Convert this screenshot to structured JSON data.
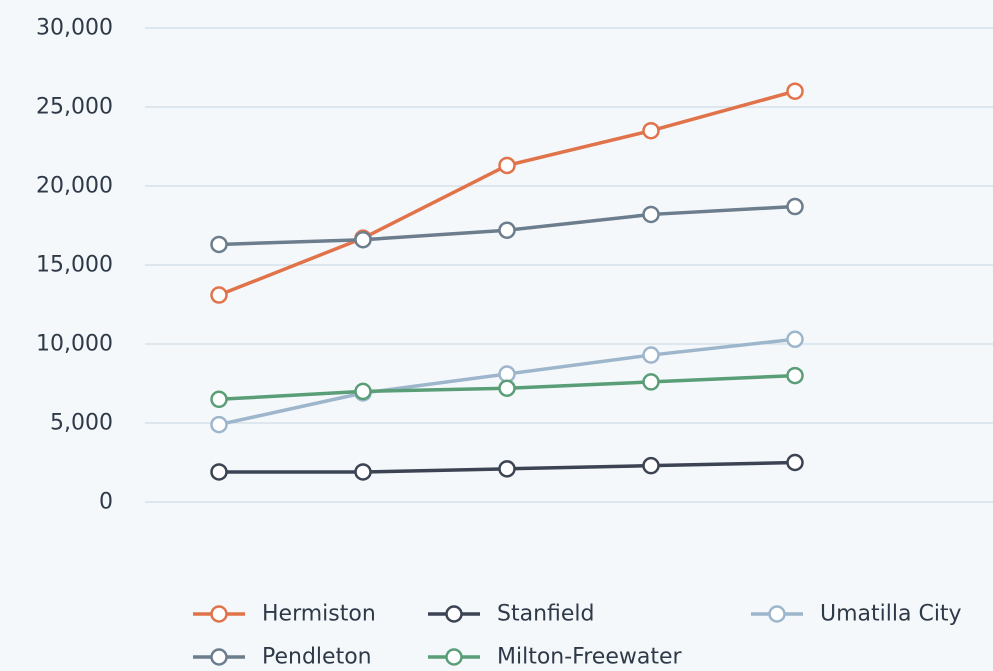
{
  "chart_data": {
    "type": "line",
    "title": "",
    "xlabel": "",
    "ylabel": "",
    "x": [
      1,
      2,
      3,
      4,
      5
    ],
    "ylim": [
      0,
      30000
    ],
    "y_ticks": [
      {
        "value": 0,
        "label": "0"
      },
      {
        "value": 5000,
        "label": "5,000"
      },
      {
        "value": 10000,
        "label": "10,000"
      },
      {
        "value": 15000,
        "label": "15,000"
      },
      {
        "value": 20000,
        "label": "20,000"
      },
      {
        "value": 25000,
        "label": "25,000"
      },
      {
        "value": 30000,
        "label": "30,000"
      }
    ],
    "grid": true,
    "legend_position": "bottom",
    "series": [
      {
        "name": "Hermiston",
        "color": "#e0734a",
        "values": [
          13100,
          16700,
          21300,
          23500,
          26000
        ]
      },
      {
        "name": "Stanfield",
        "color": "#3c4454",
        "values": [
          1900,
          1900,
          2100,
          2300,
          2500
        ]
      },
      {
        "name": "Umatilla City",
        "color": "#9db6cc",
        "values": [
          4900,
          6900,
          8100,
          9300,
          10300
        ]
      },
      {
        "name": "Pendleton",
        "color": "#6c7d8d",
        "values": [
          16300,
          16600,
          17200,
          18200,
          18700
        ]
      },
      {
        "name": "Milton-Freewater",
        "color": "#5a9e78",
        "values": [
          6500,
          7000,
          7200,
          7600,
          8000
        ]
      }
    ]
  }
}
